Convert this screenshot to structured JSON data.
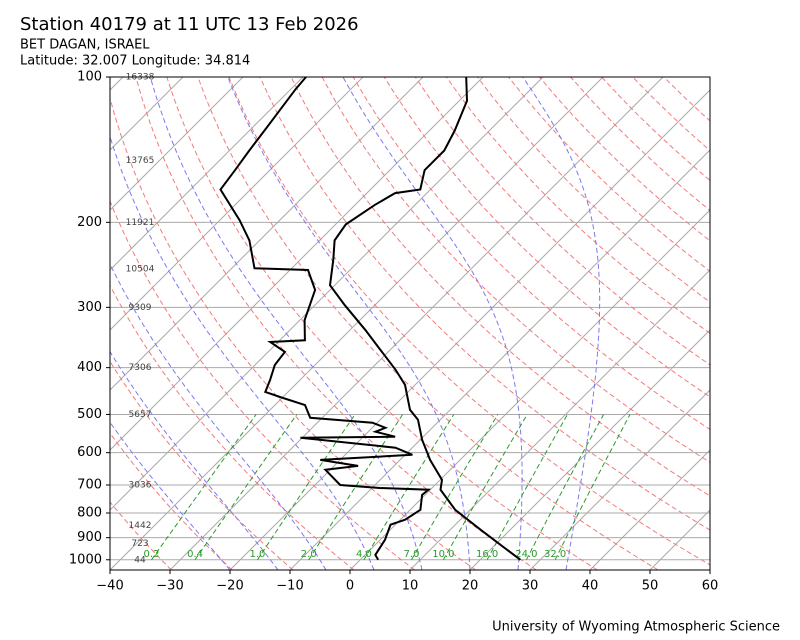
{
  "chart_data": {
    "type": "skewt",
    "title": "Station 40179 at 11 UTC 13 Feb 2026",
    "subtitle": "BET DAGAN, ISRAEL",
    "location": "Latitude: 32.007 Longitude: 34.814",
    "credit": "University of Wyoming Atmospheric Science",
    "xlim": [
      -40,
      60
    ],
    "xticks": [
      {
        "value": -40,
        "label": "−40"
      },
      {
        "value": -30,
        "label": "−30"
      },
      {
        "value": -20,
        "label": "−20"
      },
      {
        "value": -10,
        "label": "−10"
      },
      0,
      10,
      20,
      30,
      40,
      50,
      60
    ],
    "ylim": [
      1050,
      100
    ],
    "yticks": [
      100,
      200,
      300,
      400,
      500,
      600,
      700,
      800,
      900,
      1000
    ],
    "log_y": true,
    "grid": true,
    "series": [
      {
        "color": "#000000",
        "pressure": [
          1000,
          866,
          788,
          716,
          683,
          621,
          564,
          513,
          489,
          434,
          404,
          367,
          334,
          297,
          270,
          239,
          218,
          202,
          184,
          174,
          171,
          156,
          142,
          129,
          112,
          100
        ],
        "values": [
          26.7,
          15,
          7.5,
          1.7,
          0.3,
          -5,
          -9.7,
          -13.7,
          -16.7,
          -21.7,
          -25.8,
          -31.7,
          -37.5,
          -45,
          -50.8,
          -54.5,
          -57.5,
          -58.3,
          -56.7,
          -55.3,
          -51.7,
          -54.2,
          -54.2,
          -55.8,
          -58.7,
          -62.8
        ]
      },
      {
        "color": "#000000",
        "pressure": [
          1000,
          977,
          909,
          846,
          826,
          788,
          734,
          716,
          710,
          700,
          651,
          639,
          621,
          606,
          586,
          559,
          556,
          543,
          533,
          520,
          508,
          478,
          460,
          449,
          424,
          395,
          371,
          354,
          351,
          319,
          276,
          251,
          249,
          218,
          198,
          171,
          156,
          142,
          129,
          106,
          100
        ],
        "values": [
          3,
          1.7,
          0.8,
          -0.8,
          0.8,
          1.7,
          -0.5,
          -0.3,
          -8.7,
          -15.8,
          -20.8,
          -16,
          -23.3,
          -8.8,
          -12.8,
          -30.3,
          -14.7,
          -18.8,
          -17.8,
          -20.8,
          -32,
          -35,
          -40.5,
          -43.8,
          -45,
          -46.7,
          -47.2,
          -51.3,
          -45.8,
          -49.2,
          -52.5,
          -57,
          -66.2,
          -71.7,
          -76.7,
          -85,
          -85.8,
          -86.7,
          -87.5,
          -89.2,
          -89.5
        ]
      }
    ],
    "heights": {
      "pressure": [
        100,
        149,
        200,
        250,
        300,
        400,
        500,
        700,
        850,
        925,
        1000
      ],
      "values": [
        16338,
        13765,
        11921,
        10504,
        9309,
        7306,
        5657,
        3036,
        1442,
        723,
        44
      ]
    },
    "mixing_ratios": [
      0.2,
      0.4,
      {
        "value": 1,
        "label": "1.0"
      },
      {
        "value": 2,
        "label": "2.0"
      },
      {
        "value": 4,
        "label": "4.0"
      },
      {
        "value": 7,
        "label": "7.0"
      },
      {
        "value": 10,
        "label": "10.0"
      },
      {
        "value": 16,
        "label": "16.0"
      },
      {
        "value": 24,
        "label": "24.0"
      },
      {
        "value": 32,
        "label": "32.0"
      }
    ]
  }
}
